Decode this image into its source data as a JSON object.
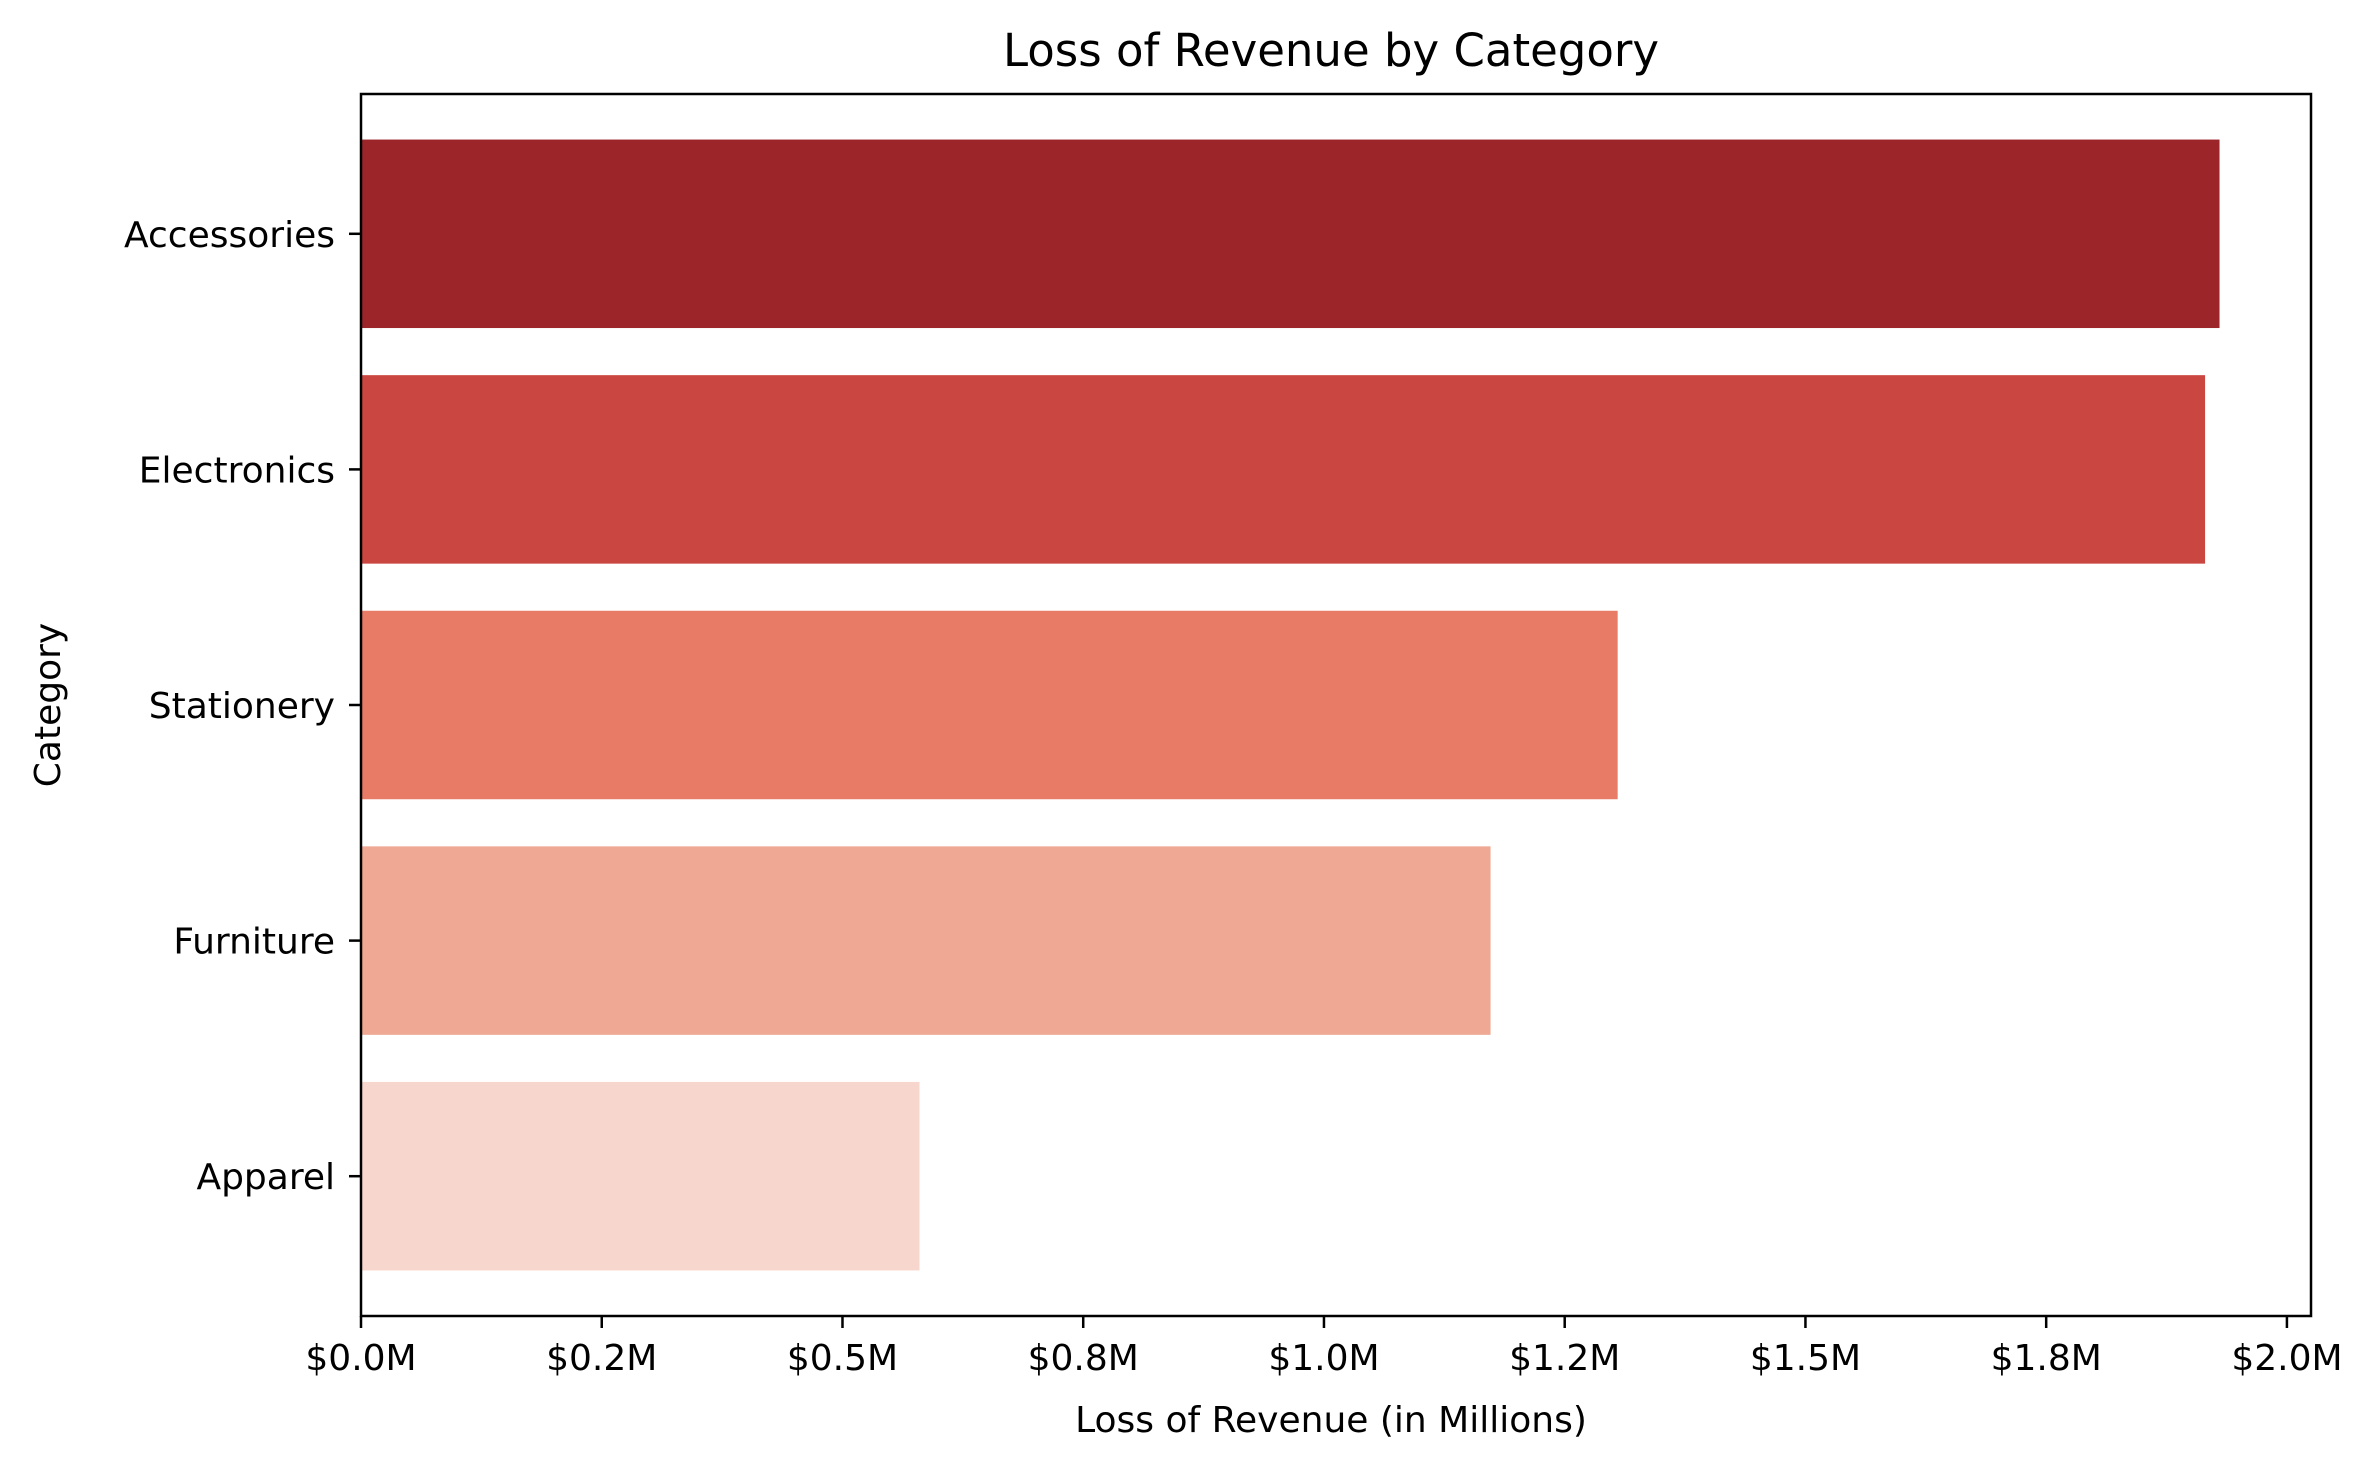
{
  "chart_data": {
    "type": "bar",
    "orientation": "horizontal",
    "title": "Loss of Revenue by Category",
    "xlabel": "Loss of Revenue (in Millions)",
    "ylabel": "Category",
    "categories": [
      "Accessories",
      "Electronics",
      "Stationery",
      "Furniture",
      "Apparel"
    ],
    "values": [
      1.93,
      1.915,
      1.305,
      1.173,
      0.58
    ],
    "colors": [
      "#9c252a",
      "#ca4640",
      "#e77b65",
      "#eea893",
      "#f7d7cd"
    ],
    "xlim": [
      0,
      2.025
    ],
    "xticks": [
      0,
      0.25,
      0.5,
      0.75,
      1.0,
      1.25,
      1.5,
      1.75,
      2.0
    ],
    "xtick_labels": [
      "$0.0M",
      "$0.2M",
      "$0.5M",
      "$0.8M",
      "$1.0M",
      "$1.2M",
      "$1.5M",
      "$1.8M",
      "$2.0M"
    ],
    "grid": false,
    "legend": "none"
  }
}
